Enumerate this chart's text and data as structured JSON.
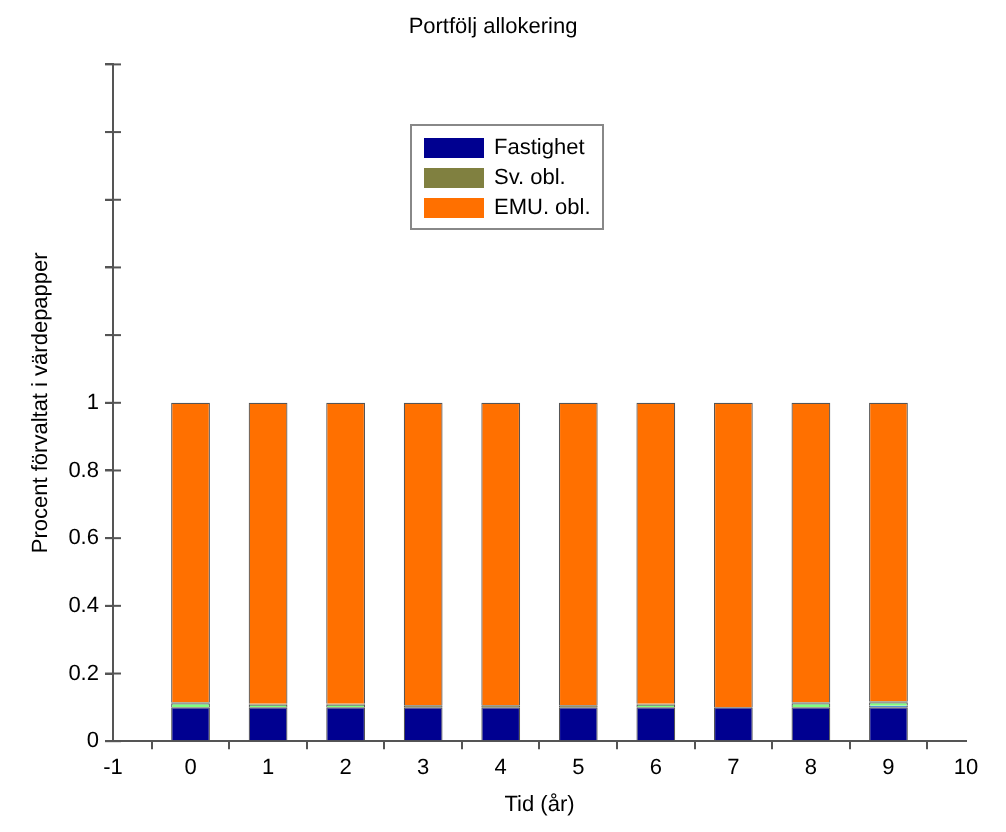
{
  "chart_data": {
    "type": "bar",
    "stacked": true,
    "title": "Portfölj allokering",
    "xlabel": "Tid (år)",
    "ylabel": "Procent förvaltat i värdepapper",
    "x": [
      0,
      1,
      2,
      3,
      4,
      5,
      6,
      7,
      8,
      9
    ],
    "series": [
      {
        "name": "Fastighet",
        "color": "#000090",
        "values": [
          0.1,
          0.1,
          0.1,
          0.1,
          0.1,
          0.1,
          0.1,
          0.1,
          0.1,
          0.1
        ]
      },
      {
        "color": "#0080ff",
        "values": [
          0,
          0,
          0,
          0,
          0,
          0,
          0,
          0,
          0,
          0.005
        ]
      },
      {
        "color": "#80ff80",
        "values": [
          0.012,
          0.008,
          0.008,
          0,
          0,
          0,
          0.008,
          0,
          0.012,
          0.01
        ]
      },
      {
        "name": "Sv. obl.",
        "color": "#808040",
        "values": [
          0.003,
          0.003,
          0.003,
          0.006,
          0.006,
          0.006,
          0.003,
          0,
          0.003,
          0.003
        ]
      },
      {
        "name": "EMU. obl.",
        "color": "#ff7000",
        "values": [
          0.885,
          0.889,
          0.889,
          0.894,
          0.894,
          0.894,
          0.889,
          0.9,
          0.885,
          0.882
        ]
      }
    ],
    "xlim": [
      -1,
      10
    ],
    "xticks": [
      -1,
      0,
      1,
      2,
      3,
      4,
      5,
      6,
      7,
      8,
      9,
      10
    ],
    "ylim": [
      0,
      2
    ],
    "yticks": [
      0,
      0.2,
      0.4,
      0.6,
      0.8,
      1,
      {
        "value": 1.2,
        "label": null
      },
      {
        "value": 1.4,
        "label": null
      },
      {
        "value": 1.6,
        "label": null
      },
      {
        "value": 1.8,
        "label": null
      },
      {
        "value": 2,
        "label": null
      }
    ],
    "grid": false,
    "legend": "top"
  }
}
